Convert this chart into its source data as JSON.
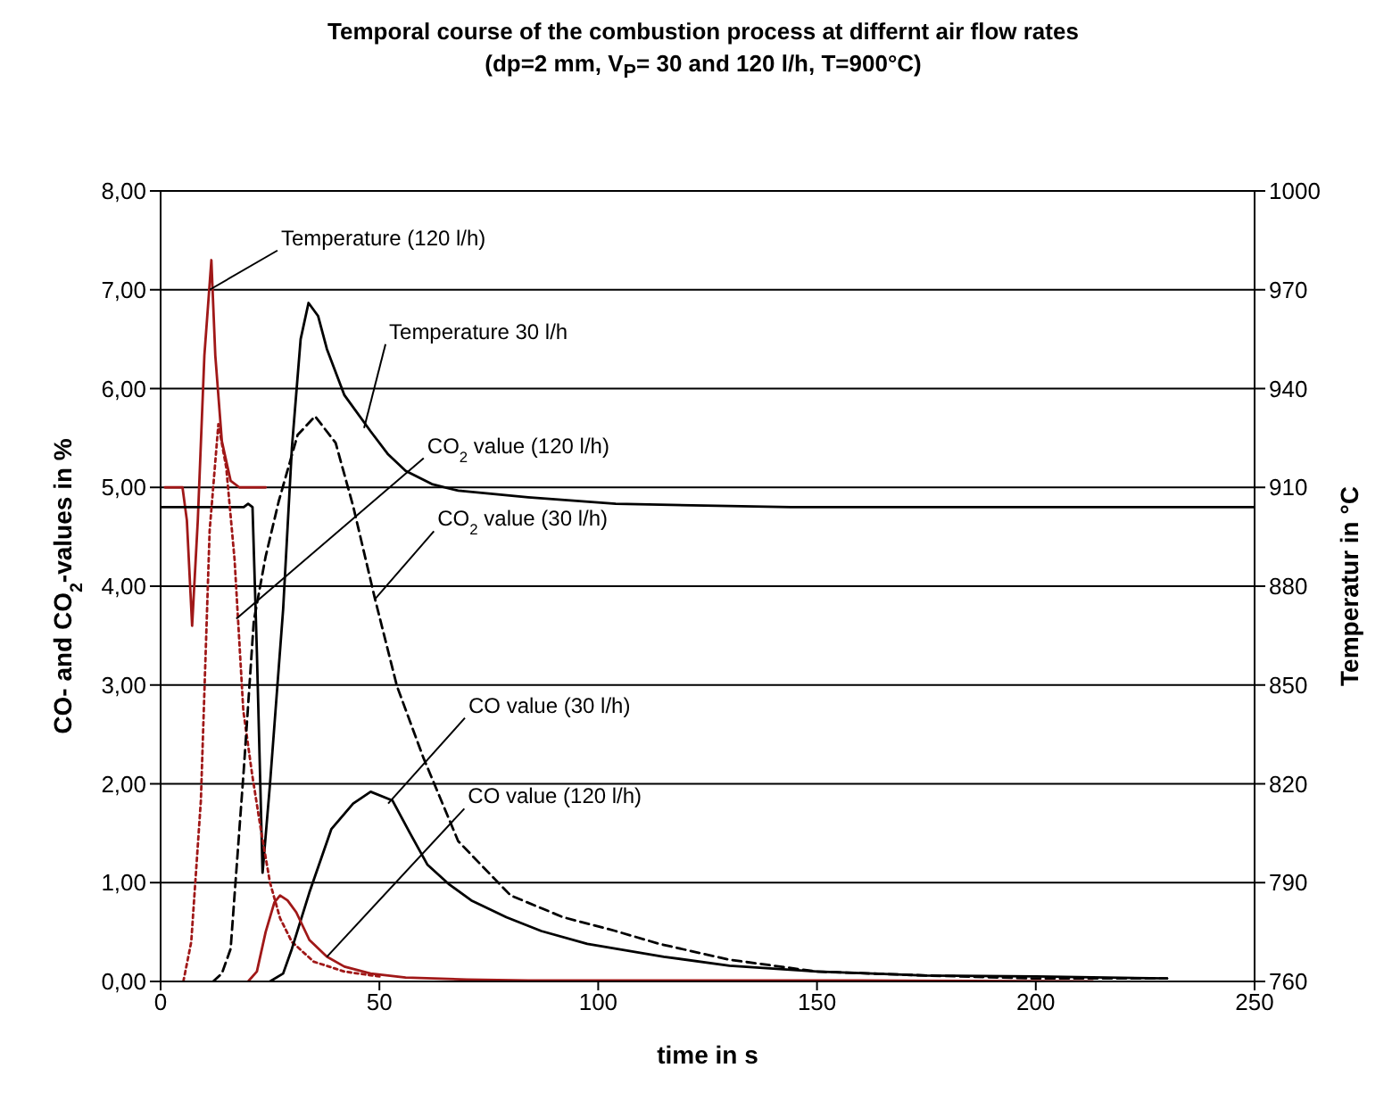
{
  "chart_data": {
    "type": "line",
    "title": "Temporal course of the combustion process at differnt air flow rates",
    "subtitle": "(dp=2 mm, V$_{P}$= 30 and 120 l/h, T=900°C)",
    "xlabel": "time in s",
    "ylabel": "CO- and CO$_{2}$-values in %",
    "y2label": "Temperatur in °C",
    "xlim": [
      0,
      250
    ],
    "xticks": [
      0,
      50,
      100,
      150,
      200,
      250
    ],
    "ylim": [
      0,
      8
    ],
    "yticks": [
      {
        "value": 0,
        "label": "0,00"
      },
      {
        "value": 1,
        "label": "1,00"
      },
      {
        "value": 2,
        "label": "2,00"
      },
      {
        "value": 3,
        "label": "3,00"
      },
      {
        "value": 4,
        "label": "4,00"
      },
      {
        "value": 5,
        "label": "5,00"
      },
      {
        "value": 6,
        "label": "6,00"
      },
      {
        "value": 7,
        "label": "7,00"
      },
      {
        "value": 8,
        "label": "8,00"
      }
    ],
    "y2lim": [
      760,
      1000
    ],
    "y2ticks": [
      760,
      790,
      820,
      850,
      880,
      910,
      940,
      970,
      1000
    ],
    "grid": "y",
    "marker": "none",
    "series": [
      {
        "axis": "y2",
        "color": "#a01818",
        "line_style": "solid",
        "x": [
          1,
          5,
          6,
          7.2,
          8.5,
          10,
          11.6,
          12.5,
          14,
          16,
          18,
          24
        ],
        "values": [
          910,
          910,
          900,
          868,
          900,
          950,
          979,
          950,
          924,
          912,
          910,
          910
        ]
      },
      {
        "axis": "y2",
        "color": "#000000",
        "line_style": "solid",
        "x": [
          0,
          10,
          19,
          20,
          21,
          22,
          23.3,
          25,
          28,
          30,
          32,
          33.8,
          36,
          38,
          42,
          48,
          52,
          56,
          62,
          68,
          76,
          84,
          104,
          144,
          180,
          250
        ],
        "values": [
          904,
          904,
          904,
          905,
          904,
          860,
          793,
          820,
          873,
          922,
          955,
          966,
          962,
          952,
          938,
          927,
          920,
          915,
          911,
          909,
          908,
          907,
          905,
          904,
          904,
          904
        ]
      },
      {
        "color": "#a01818",
        "line_style": "dotted",
        "x": [
          5.2,
          7,
          9.2,
          11.2,
          13.2,
          15,
          16.9,
          18.9,
          20.9,
          22.9,
          25,
          27.3,
          30,
          35,
          42,
          50
        ],
        "values": [
          0,
          0.4,
          1.83,
          4.56,
          5.64,
          5.2,
          4.27,
          2.74,
          2.1,
          1.54,
          1.0,
          0.64,
          0.4,
          0.2,
          0.1,
          0.05
        ]
      },
      {
        "color": "#000000",
        "line_style": "dashed",
        "x": [
          12,
          14,
          16,
          19,
          21.3,
          24,
          27,
          31.3,
          35.3,
          40,
          44,
          49,
          54,
          60,
          68,
          80,
          92,
          104,
          114,
          130,
          150,
          175,
          200,
          230
        ],
        "values": [
          0,
          0.08,
          0.33,
          2.14,
          3.65,
          4.3,
          4.86,
          5.53,
          5.72,
          5.45,
          4.81,
          3.87,
          2.99,
          2.27,
          1.42,
          0.87,
          0.65,
          0.51,
          0.38,
          0.22,
          0.1,
          0.06,
          0.03,
          0.03
        ]
      },
      {
        "color": "#000000",
        "line_style": "solid",
        "x": [
          25,
          28,
          30,
          34,
          39,
          44,
          48,
          53,
          57,
          61,
          66,
          71,
          79,
          87,
          97.5,
          115,
          130,
          150,
          175,
          200,
          230
        ],
        "values": [
          0,
          0.08,
          0.33,
          0.9,
          1.54,
          1.8,
          1.92,
          1.83,
          1.5,
          1.18,
          0.98,
          0.82,
          0.65,
          0.51,
          0.38,
          0.25,
          0.16,
          0.1,
          0.06,
          0.05,
          0.03
        ]
      },
      {
        "color": "#a01818",
        "line_style": "solid",
        "x": [
          20,
          22,
          24,
          26,
          27.3,
          29,
          31,
          34,
          38,
          42,
          48,
          56,
          70,
          84,
          120,
          160,
          213
        ],
        "values": [
          0,
          0.1,
          0.5,
          0.8,
          0.87,
          0.82,
          0.7,
          0.42,
          0.25,
          0.15,
          0.08,
          0.04,
          0.02,
          0.01,
          0.01,
          0.01,
          0
        ]
      }
    ],
    "annotations": [
      {
        "text": "Temperature (120 l/h)",
        "x": 11.2,
        "y": 7.0
      },
      {
        "text": "Temperature 30 l/h",
        "x": 46.5,
        "y": 5.6
      },
      {
        "text": "CO$_{2}$ value (120 l/h)",
        "x": 17.3,
        "y": 3.67
      },
      {
        "text": "CO$_{2}$ value (30 l/h)",
        "x": 49,
        "y": 3.87
      },
      {
        "text": "CO value (30 l/h)",
        "x": 52,
        "y": 1.8
      },
      {
        "text": "CO value (120 l/h)",
        "x": 38,
        "y": 0.25
      }
    ]
  }
}
